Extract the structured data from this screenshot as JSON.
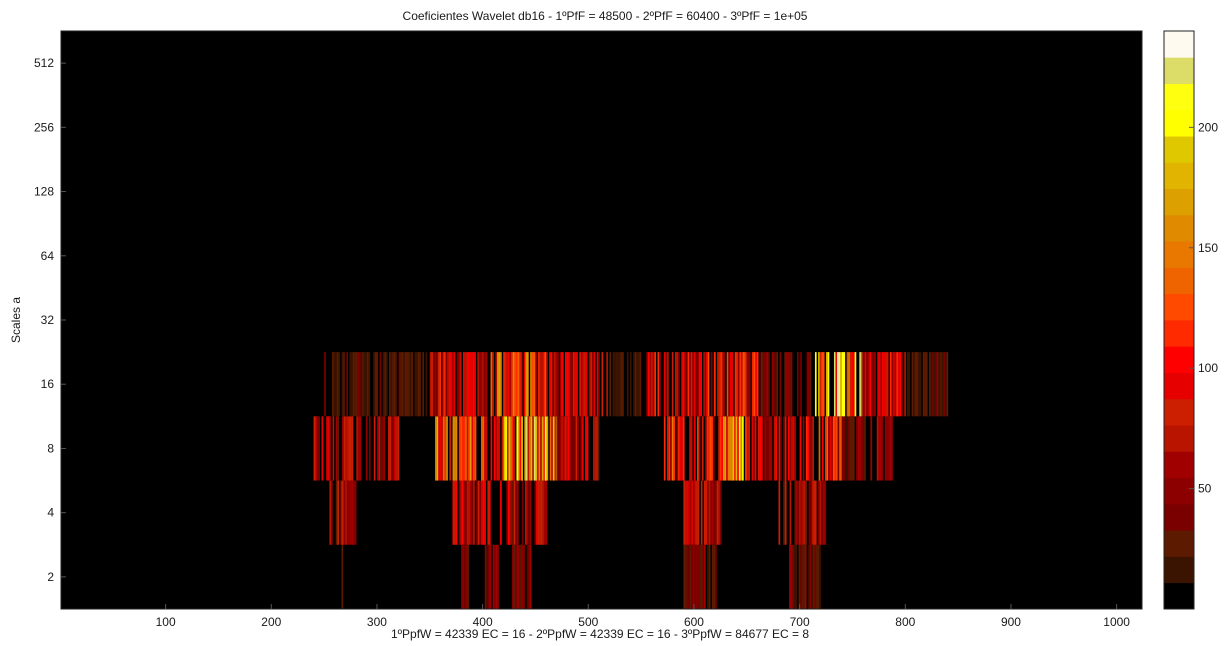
{
  "chart_data": {
    "type": "heatmap",
    "title": "Coeficientes Wavelet db16 - 1ºPfF = 48500 - 2ºPfF = 60400 - 3ºPfF = 1e+05",
    "xlabel": "1ºPpfW = 42339 EC = 16  -  2ºPpfW = 42339 EC = 16  -  3ºPpfW = 84677 EC = 8",
    "ylabel": "Scales a",
    "xlim": [
      1,
      1024
    ],
    "x_ticks": [
      100,
      200,
      300,
      400,
      500,
      600,
      700,
      800,
      900,
      1000
    ],
    "y_scale": "log2",
    "y_ticks": [
      2,
      4,
      8,
      16,
      32,
      64,
      128,
      256,
      512
    ],
    "scale_rows": [
      2,
      4,
      8,
      16,
      32,
      64,
      128,
      256,
      512
    ],
    "colormap": "hot",
    "clim": [
      0,
      240
    ],
    "colorbar_ticks": [
      50,
      100,
      150,
      200
    ],
    "colorbar_levels": [
      "#000000",
      "#3a1400",
      "#5c1a00",
      "#7a0000",
      "#8c0000",
      "#a00000",
      "#b81400",
      "#cc1e00",
      "#e60000",
      "#ff0000",
      "#ff2a00",
      "#ff4a00",
      "#f06400",
      "#e87800",
      "#e08a00",
      "#dca000",
      "#e0b400",
      "#e0c800",
      "#ffff00",
      "#ffff10",
      "#dcdc68",
      "#fffaf0"
    ],
    "activity": [
      {
        "scale": 2,
        "segments": [
          [
            265,
            268,
            45
          ],
          [
            378,
            387,
            50
          ],
          [
            402,
            415,
            55
          ],
          [
            428,
            445,
            55
          ],
          [
            590,
            622,
            50
          ],
          [
            690,
            720,
            50
          ]
        ]
      },
      {
        "scale": 4,
        "segments": [
          [
            255,
            280,
            70
          ],
          [
            370,
            425,
            90
          ],
          [
            425,
            460,
            80
          ],
          [
            590,
            625,
            80
          ],
          [
            680,
            725,
            75
          ]
        ]
      },
      {
        "scale": 8,
        "segments": [
          [
            240,
            320,
            80
          ],
          [
            355,
            420,
            150
          ],
          [
            420,
            470,
            190
          ],
          [
            470,
            510,
            90
          ],
          [
            570,
            620,
            120
          ],
          [
            620,
            650,
            180
          ],
          [
            650,
            700,
            95
          ],
          [
            700,
            740,
            120
          ],
          [
            740,
            790,
            60
          ]
        ]
      },
      {
        "scale": 16,
        "segments": [
          [
            250,
            350,
            30
          ],
          [
            350,
            400,
            95
          ],
          [
            400,
            460,
            150
          ],
          [
            460,
            520,
            90
          ],
          [
            520,
            550,
            25
          ],
          [
            555,
            610,
            95
          ],
          [
            610,
            660,
            110
          ],
          [
            660,
            710,
            50
          ],
          [
            710,
            760,
            200
          ],
          [
            760,
            800,
            100
          ],
          [
            800,
            840,
            30
          ]
        ]
      }
    ]
  }
}
